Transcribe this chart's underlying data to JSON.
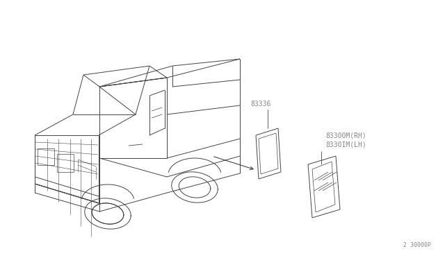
{
  "background_color": "#ffffff",
  "line_color": "#444444",
  "text_color": "#888888",
  "part_label_1": "83336",
  "part_label_2": "83300M(RH)",
  "part_label_3": "8330IM(LH)",
  "corner_label": "2 30000P",
  "fig_width": 6.4,
  "fig_height": 3.72,
  "dpi": 100
}
